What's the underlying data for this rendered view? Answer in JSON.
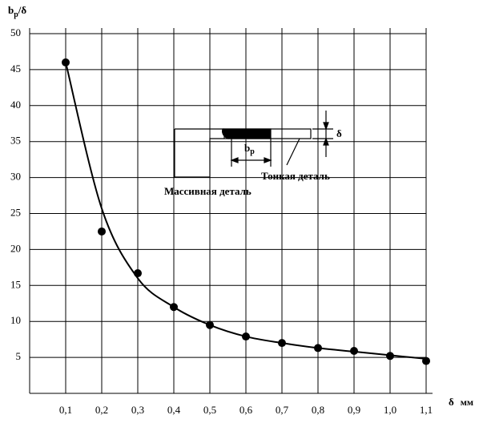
{
  "chart_data": {
    "type": "scatter",
    "y_label": {
      "base": "b",
      "sub": "p",
      "rest": "/δ"
    },
    "x_label": {
      "symbol": "δ",
      "unit": "мм"
    },
    "xlim": [
      0,
      1.1
    ],
    "ylim": [
      0,
      50
    ],
    "xticks": [
      {
        "value": 0.1,
        "label": "0,1"
      },
      {
        "value": 0.2,
        "label": "0,2"
      },
      {
        "value": 0.3,
        "label": "0,3"
      },
      {
        "value": 0.4,
        "label": "0,4"
      },
      {
        "value": 0.5,
        "label": "0,5"
      },
      {
        "value": 0.6,
        "label": "0,6"
      },
      {
        "value": 0.7,
        "label": "0,7"
      },
      {
        "value": 0.8,
        "label": "0,8"
      },
      {
        "value": 0.9,
        "label": "0,9"
      },
      {
        "value": 1.0,
        "label": "1,0"
      },
      {
        "value": 1.1,
        "label": "1,1"
      }
    ],
    "yticks": [
      5,
      10,
      15,
      20,
      25,
      30,
      35,
      40,
      45,
      50
    ],
    "grid": true,
    "x": [
      0.1,
      0.2,
      0.3,
      0.4,
      0.5,
      0.6,
      0.7,
      0.8,
      0.9,
      1.0,
      1.1
    ],
    "series": [
      {
        "mode": "markers",
        "color": "#000000",
        "values": [
          46,
          22.5,
          16.7,
          12,
          9.5,
          7.9,
          7,
          6.3,
          5.9,
          5.2,
          4.5
        ]
      },
      {
        "mode": "lines",
        "color": "#000000",
        "values": [
          46,
          25.7,
          16,
          12,
          9.5,
          7.9,
          7,
          6.3,
          5.8,
          5.3,
          4.8
        ]
      }
    ],
    "annotations": {
      "delta": "δ",
      "bp": {
        "base": "b",
        "sub": "p"
      },
      "thin_part": "Тонкая деталь",
      "massive_part": "Массивная деталь"
    }
  }
}
